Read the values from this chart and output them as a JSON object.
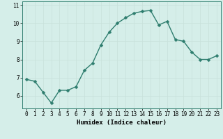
{
  "x": [
    0,
    1,
    2,
    3,
    4,
    5,
    6,
    7,
    8,
    9,
    10,
    11,
    12,
    13,
    14,
    15,
    16,
    17,
    18,
    19,
    20,
    21,
    22,
    23
  ],
  "y": [
    6.9,
    6.8,
    6.2,
    5.6,
    6.3,
    6.3,
    6.5,
    7.4,
    7.8,
    8.8,
    9.5,
    10.0,
    10.3,
    10.55,
    10.65,
    10.7,
    9.9,
    10.1,
    9.1,
    9.0,
    8.4,
    8.0,
    8.0,
    8.2
  ],
  "line_color": "#2e7d6e",
  "marker_color": "#2e7d6e",
  "bg_color": "#d5eee9",
  "grid_color": "#c8e0da",
  "xlabel": "Humidex (Indice chaleur)",
  "xlim": [
    -0.5,
    23.5
  ],
  "ylim": [
    5.3,
    11.2
  ],
  "yticks": [
    6,
    7,
    8,
    9,
    10,
    11
  ],
  "xticks": [
    0,
    1,
    2,
    3,
    4,
    5,
    6,
    7,
    8,
    9,
    10,
    11,
    12,
    13,
    14,
    15,
    16,
    17,
    18,
    19,
    20,
    21,
    22,
    23
  ],
  "tick_fontsize": 5.5,
  "xlabel_fontsize": 6.5,
  "line_width": 1.0,
  "marker_size": 2.5
}
